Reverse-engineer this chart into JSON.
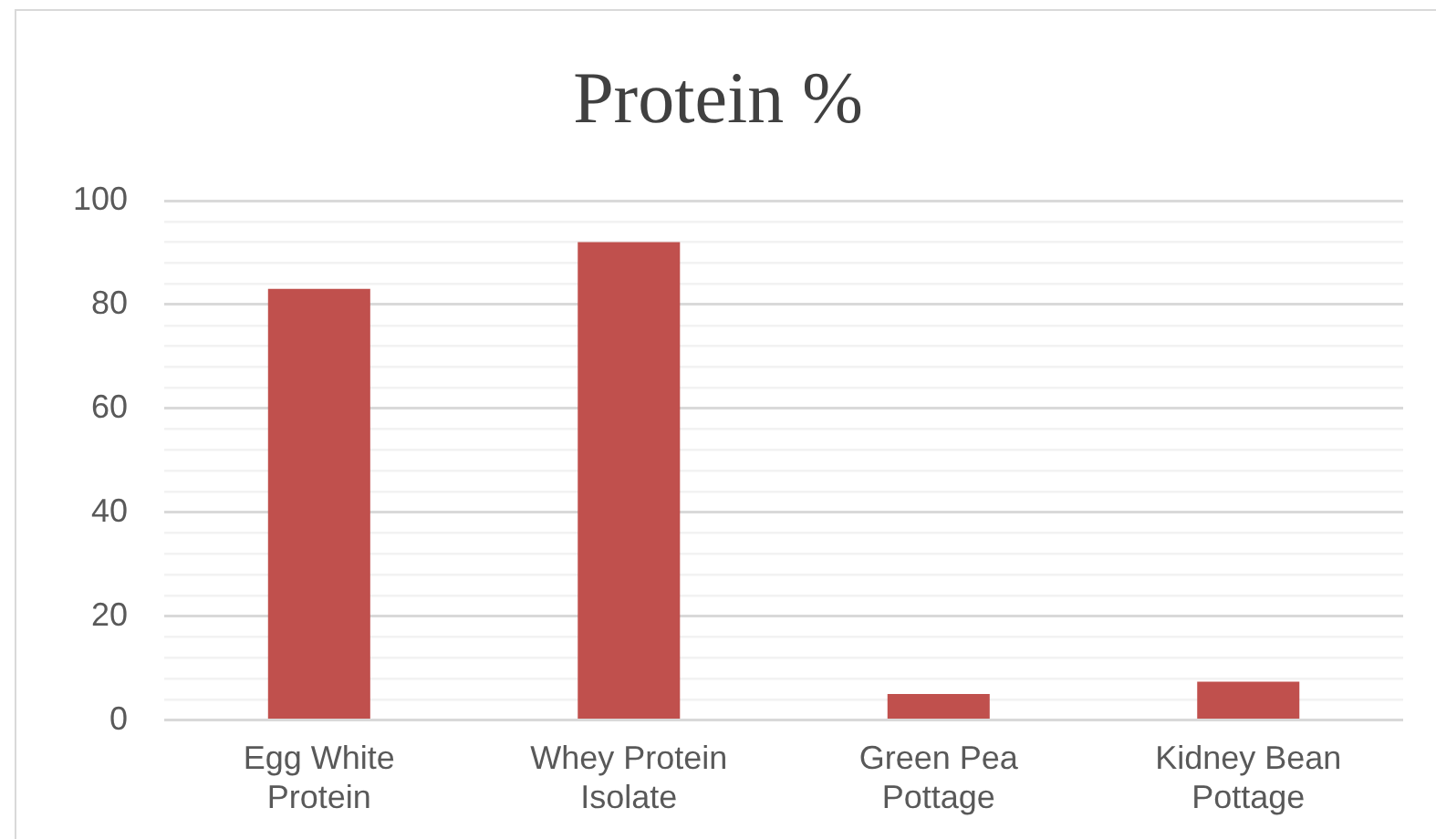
{
  "chart_data": {
    "type": "bar",
    "title": "Protein %",
    "categories": [
      "Egg White Protein",
      "Whey Protein Isolate",
      "Green Pea Pottage",
      "Kidney Bean Pottage"
    ],
    "values": [
      83,
      92,
      5,
      7.4
    ],
    "color": "#c0504d",
    "ylim": [
      0,
      100
    ],
    "yticks": [
      0,
      {
        "value": 4,
        "label": null
      },
      {
        "value": 8,
        "label": null
      },
      {
        "value": 12,
        "label": null
      },
      {
        "value": 16,
        "label": null
      },
      20,
      {
        "value": 24,
        "label": null
      },
      {
        "value": 28,
        "label": null
      },
      {
        "value": 32,
        "label": null
      },
      {
        "value": 36,
        "label": null
      },
      40,
      {
        "value": 44,
        "label": null
      },
      {
        "value": 48,
        "label": null
      },
      {
        "value": 52,
        "label": null
      },
      {
        "value": 56,
        "label": null
      },
      60,
      {
        "value": 64,
        "label": null
      },
      {
        "value": 68,
        "label": null
      },
      {
        "value": 72,
        "label": null
      },
      {
        "value": 76,
        "label": null
      },
      80,
      {
        "value": 84,
        "label": null
      },
      {
        "value": 88,
        "label": null
      },
      {
        "value": 92,
        "label": null
      },
      {
        "value": 96,
        "label": null
      },
      100
    ],
    "grid": true
  }
}
